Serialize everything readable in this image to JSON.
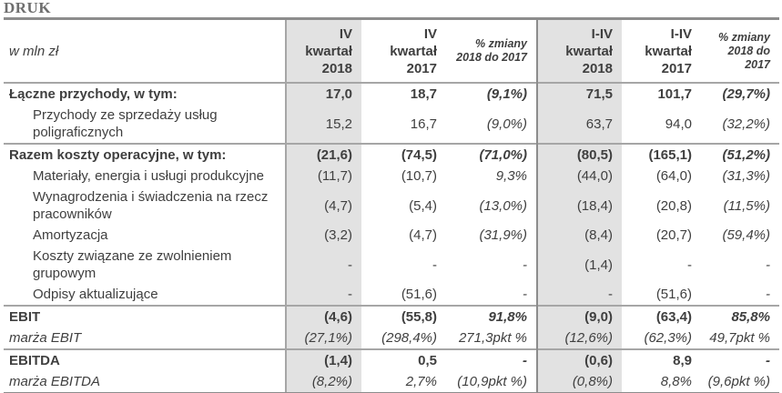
{
  "page": {
    "title": "DRUK"
  },
  "colors": {
    "text": "#3f3f3f",
    "title": "#6e6e6e",
    "column_shade": "#e2e2e2",
    "section_border": "#a6a6a6",
    "outer_border": "#8c8c8c"
  },
  "table": {
    "unit_header": "w mln zł",
    "columns": [
      {
        "label": "IV\nkwartał\n2018",
        "shaded": true
      },
      {
        "label": "IV\nkwartał\n2017",
        "shaded": false
      },
      {
        "label": "% zmiany\n2018 do 2017",
        "shaded": false
      },
      {
        "label": "I-IV\nkwartał\n2018",
        "shaded": true
      },
      {
        "label": "I-IV\nkwartał\n2017",
        "shaded": false
      },
      {
        "label": "% zmiany\n2018 do 2017",
        "shaded": false
      }
    ],
    "rows": [
      {
        "label": "Łączne przychody, w tym:",
        "style": "bold",
        "section": false,
        "values": [
          "17,0",
          "18,7",
          "(9,1%)",
          "71,5",
          "101,7",
          "(29,7%)"
        ]
      },
      {
        "label": "Przychody ze sprzedaży usług poligraficznych",
        "style": "sub",
        "section": false,
        "values": [
          "15,2",
          "16,7",
          "(9,0%)",
          "63,7",
          "94,0",
          "(32,2%)"
        ]
      },
      {
        "label": "Razem koszty operacyjne, w tym:",
        "style": "bold",
        "section": true,
        "values": [
          "(21,6)",
          "(74,5)",
          "(71,0%)",
          "(80,5)",
          "(165,1)",
          "(51,2%)"
        ]
      },
      {
        "label": "Materiały, energia i usługi produkcyjne",
        "style": "sub",
        "section": false,
        "values": [
          "(11,7)",
          "(10,7)",
          "9,3%",
          "(44,0)",
          "(64,0)",
          "(31,3%)"
        ]
      },
      {
        "label": "Wynagrodzenia i świadczenia na rzecz pracowników",
        "style": "sub",
        "section": false,
        "values": [
          "(4,7)",
          "(5,4)",
          "(13,0%)",
          "(18,4)",
          "(20,8)",
          "(11,5%)"
        ]
      },
      {
        "label": "Amortyzacja",
        "style": "sub",
        "section": false,
        "values": [
          "(3,2)",
          "(4,7)",
          "(31,9%)",
          "(8,4)",
          "(20,7)",
          "(59,4%)"
        ]
      },
      {
        "label": "Koszty związane ze zwolnieniem grupowym",
        "style": "sub",
        "section": false,
        "values": [
          "-",
          "-",
          "-",
          "(1,4)",
          "-",
          "-"
        ]
      },
      {
        "label": "Odpisy aktualizujące",
        "style": "sub",
        "section": false,
        "values": [
          "-",
          "(51,6)",
          "-",
          "-",
          "(51,6)",
          "-"
        ]
      },
      {
        "label": "EBIT",
        "style": "bold",
        "section": true,
        "values": [
          "(4,6)",
          "(55,8)",
          "91,8%",
          "(9,0)",
          "(63,4)",
          "85,8%"
        ]
      },
      {
        "label": "marża EBIT",
        "style": "italic",
        "section": false,
        "values": [
          "(27,1%)",
          "(298,4%)",
          "271,3pkt %",
          "(12,6%)",
          "(62,3%)",
          "49,7pkt %"
        ]
      },
      {
        "label": "EBITDA",
        "style": "bold",
        "section": true,
        "values": [
          "(1,4)",
          "0,5",
          "-",
          "(0,6)",
          "8,9",
          "-"
        ]
      },
      {
        "label": "marża EBITDA",
        "style": "italic",
        "section": false,
        "values": [
          "(8,2%)",
          "2,7%",
          "(10,9pkt %)",
          "(0,8%)",
          "8,8%",
          "(9,6pkt %)"
        ]
      }
    ]
  }
}
